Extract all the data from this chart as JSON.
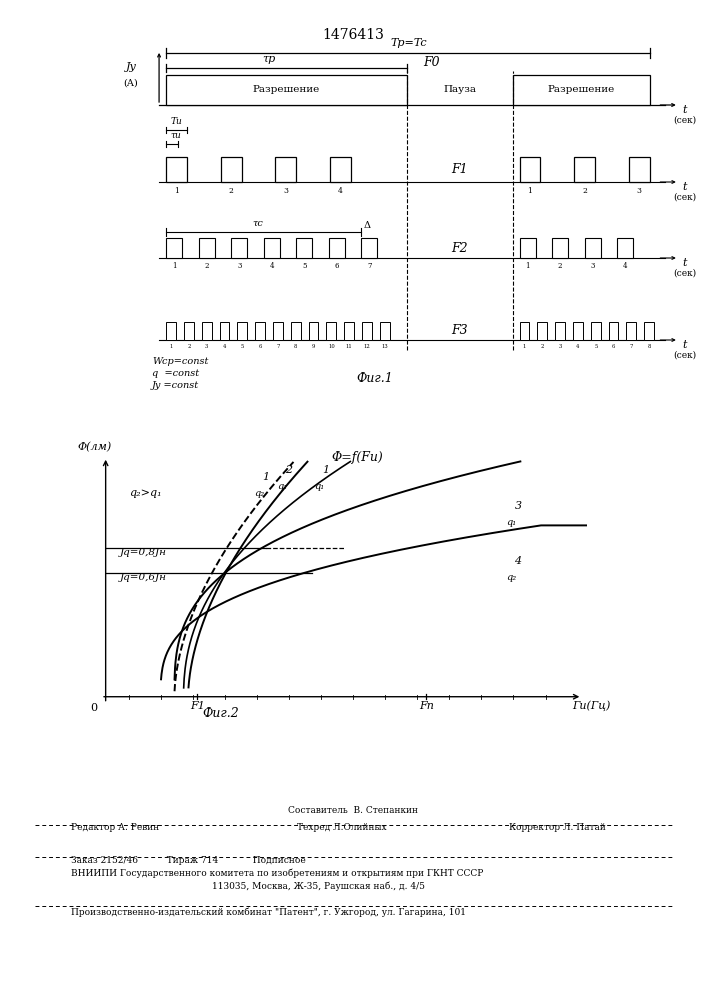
{
  "title": "1476413",
  "bg_color": "#ffffff",
  "footer": {
    "line1": "Составитель  В. Степанкин",
    "line2_left": "Редактор А. Ревин",
    "line2_mid": "Техред Л.Олийных",
    "line2_right": "Корректор Л. Патай",
    "line3": "Заказ 2152/46          Тираж 714            Подписное",
    "line4": "ВНИИПИ Государственного комитета по изобретениям и открытиям при ГКНТ СССР",
    "line5": "113035, Москва, Ж-35, Раушская наб., д. 4/5",
    "line6": "Производственно-издательский комбинат \"Патент\", г. Ужгород, ул. Гагарина, 101"
  }
}
